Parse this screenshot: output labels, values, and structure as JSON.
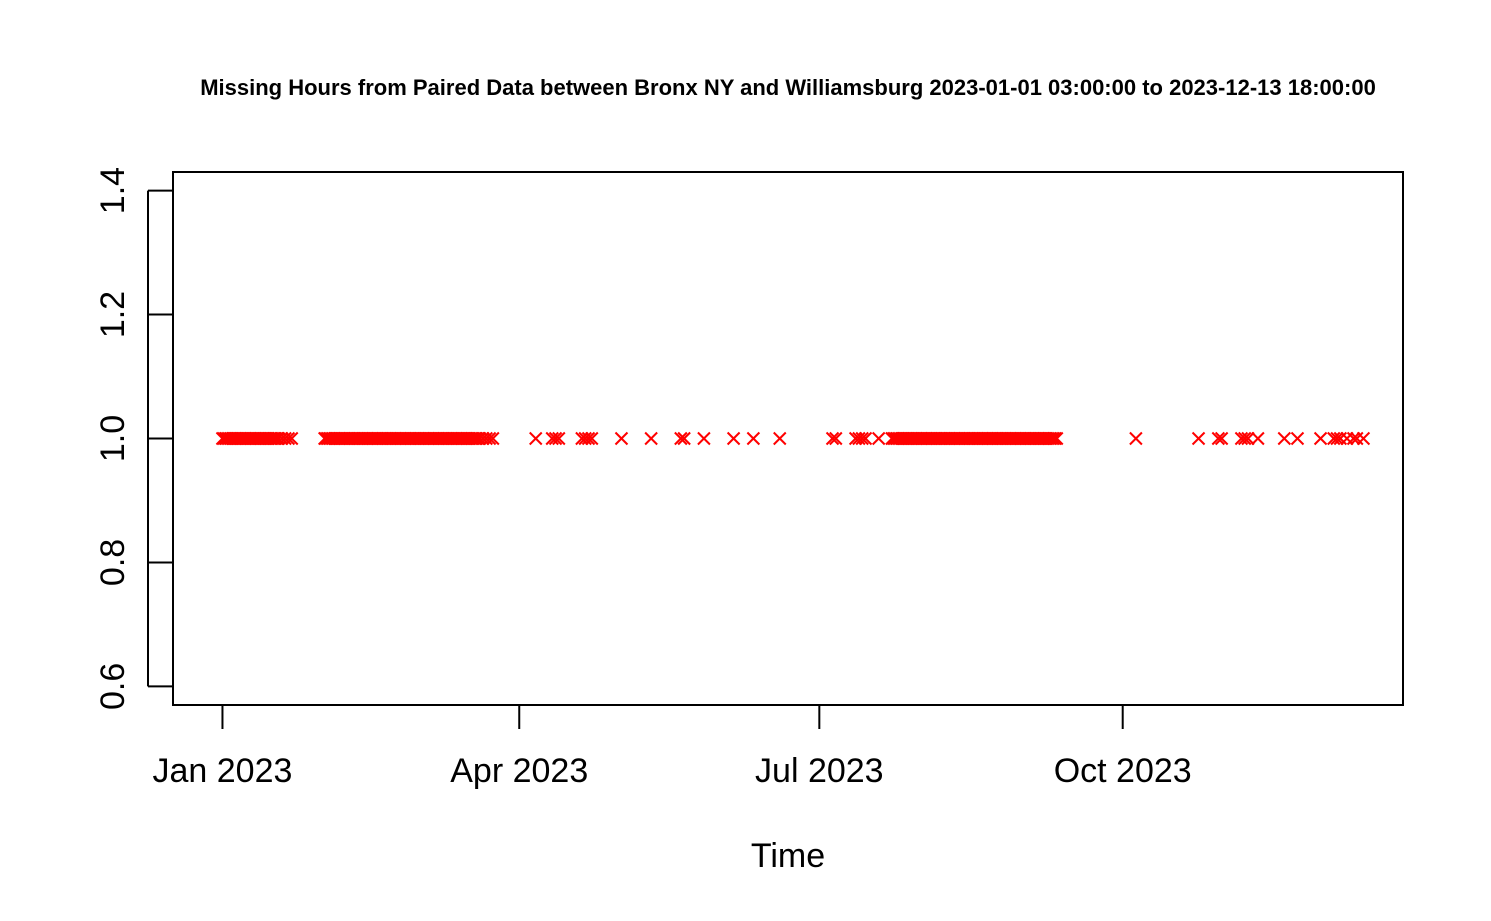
{
  "chart_data": {
    "type": "scatter",
    "title": "Missing Hours from Paired Data between Bronx NY and Williamsburg 2023-01-01 03:00:00 to 2023-12-13 18:00:00",
    "xlabel": "Time",
    "ylabel": "",
    "x_axis": {
      "type": "date",
      "range": [
        "2022-12-17",
        "2023-12-25"
      ],
      "ticks": [
        {
          "date": "2023-01-01",
          "label": "Jan 2023"
        },
        {
          "date": "2023-04-01",
          "label": "Apr 2023"
        },
        {
          "date": "2023-07-01",
          "label": "Jul 2023"
        },
        {
          "date": "2023-10-01",
          "label": "Oct 2023"
        }
      ]
    },
    "y_axis": {
      "range": [
        0.57,
        1.43
      ],
      "ticks": [
        {
          "value": 0.6,
          "label": "0.6"
        },
        {
          "value": 0.8,
          "label": "0.8"
        },
        {
          "value": 1.0,
          "label": "1.0"
        },
        {
          "value": 1.2,
          "label": "1.2"
        },
        {
          "value": 1.4,
          "label": "1.4"
        }
      ]
    },
    "marker": "x",
    "color": "#ff0000",
    "grid": false,
    "legend": "none",
    "y_value": 1.0,
    "dense_ranges": [
      {
        "start": "2023-01-01",
        "end": "2023-01-18"
      },
      {
        "start": "2023-02-01",
        "end": "2023-03-20"
      },
      {
        "start": "2023-07-23",
        "end": "2023-09-11"
      }
    ],
    "points": [
      "2023-01-19",
      "2023-01-20",
      "2023-01-21",
      "2023-01-22",
      "2023-03-21",
      "2023-03-22",
      "2023-03-23",
      "2023-03-24",
      "2023-04-06",
      "2023-04-11",
      "2023-04-12",
      "2023-04-13",
      "2023-04-20",
      "2023-04-21",
      "2023-04-22",
      "2023-04-23",
      "2023-05-02",
      "2023-05-11",
      "2023-05-20",
      "2023-05-21",
      "2023-05-27",
      "2023-06-05",
      "2023-06-11",
      "2023-06-19",
      "2023-07-05",
      "2023-07-06",
      "2023-07-12",
      "2023-07-13",
      "2023-07-14",
      "2023-07-15",
      "2023-07-19",
      "2023-10-05",
      "2023-10-24",
      "2023-10-30",
      "2023-10-31",
      "2023-11-06",
      "2023-11-07",
      "2023-11-08",
      "2023-11-11",
      "2023-11-19",
      "2023-11-23",
      "2023-11-30",
      "2023-12-04",
      "2023-12-05",
      "2023-12-06",
      "2023-12-08",
      "2023-12-10",
      "2023-12-11",
      "2023-12-13"
    ]
  }
}
